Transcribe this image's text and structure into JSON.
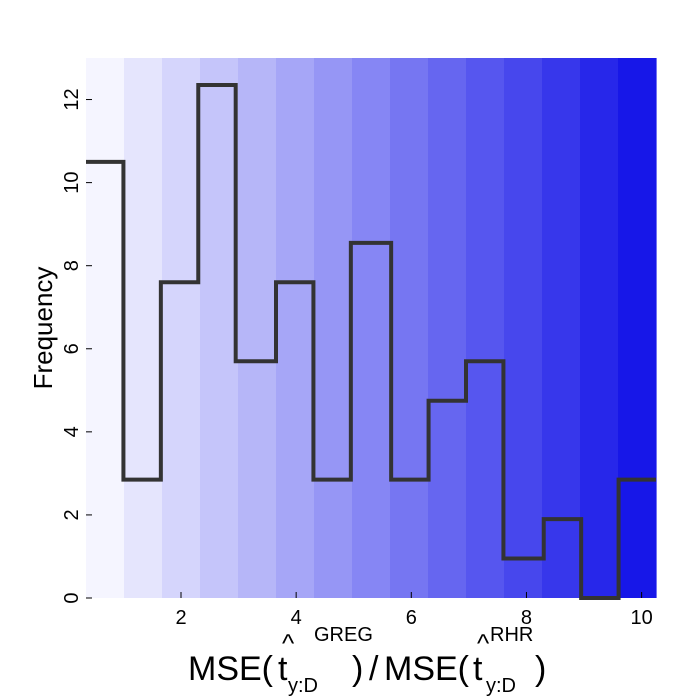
{
  "chart_data": {
    "type": "bar",
    "style": "step-histogram",
    "bin_edges": [
      0.35,
      1.0,
      1.65,
      2.3,
      2.95,
      3.65,
      4.3,
      4.95,
      5.65,
      6.3,
      6.95,
      7.6,
      8.3,
      8.95,
      9.6,
      10.25
    ],
    "values": [
      10.5,
      2.85,
      7.6,
      12.35,
      5.7,
      7.6,
      2.85,
      8.55,
      2.85,
      4.75,
      5.7,
      0.95,
      1.9,
      0,
      2.85
    ],
    "xlim": [
      0.35,
      10.25
    ],
    "ylim": [
      0,
      13
    ],
    "x_ticks": [
      2,
      4,
      6,
      8,
      10
    ],
    "y_ticks": [
      0,
      2,
      4,
      6,
      8,
      10,
      12
    ],
    "ylabel": "Frequency",
    "xlabel": {
      "left_func": "MSE(",
      "left_symbol": "t",
      "left_hat": "^",
      "left_sub": "y:D",
      "left_sup": "GREG",
      "left_close": ")",
      "divider": "/",
      "right_func": "MSE(",
      "right_symbol": "t",
      "right_hat": "^",
      "right_sub": "y:D",
      "right_sup": "RHR",
      "right_close": ")"
    },
    "grid": false,
    "legend": "none",
    "background_gradient": {
      "start_color": "#f5f5ff",
      "end_color": "#1717e8",
      "band_count": 15
    },
    "line_color": "#333333"
  }
}
